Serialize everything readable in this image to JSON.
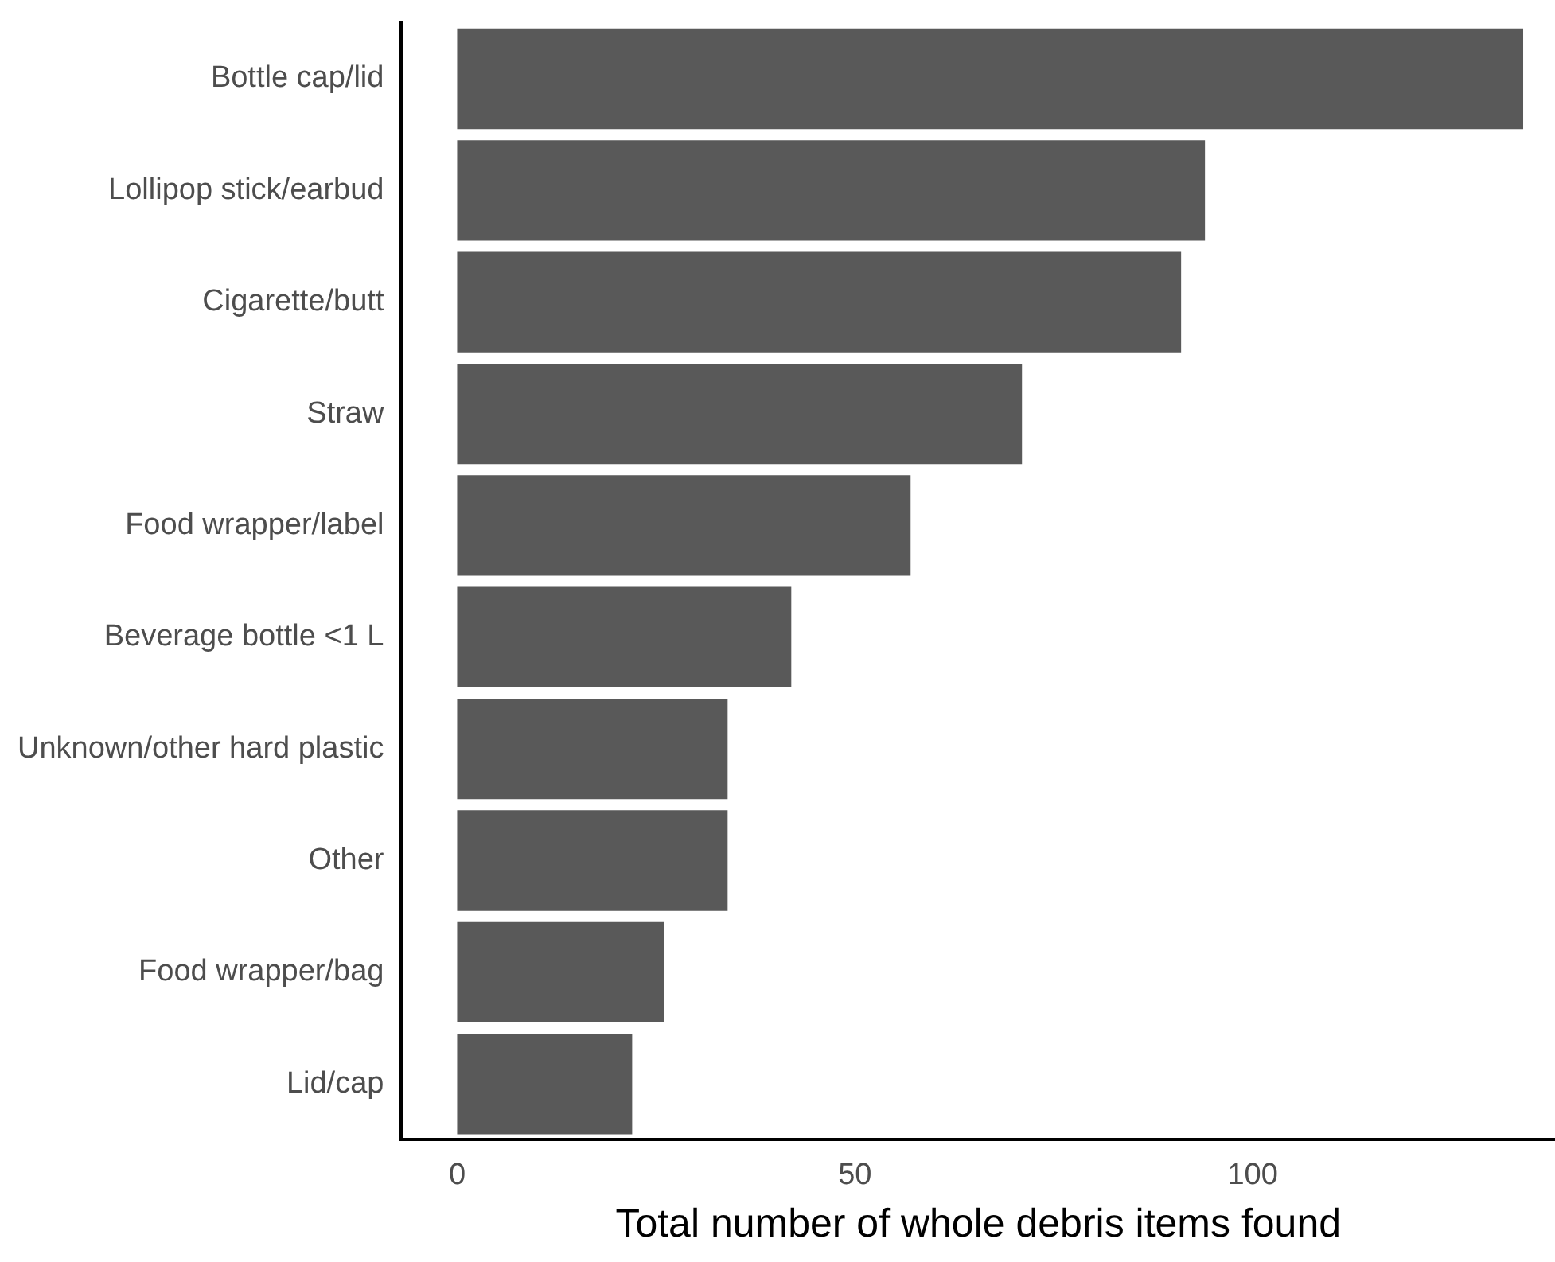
{
  "chart_data": {
    "type": "bar",
    "orientation": "horizontal",
    "xlabel": "Total number of whole debris items found",
    "categories": [
      "Bottle cap/lid",
      "Lollipop stick/earbud",
      "Cigarette/butt",
      "Straw",
      "Food wrapper/label",
      "Beverage bottle <1 L",
      "Unknown/other hard plastic",
      "Other",
      "Food wrapper/bag",
      "Lid/cap"
    ],
    "values": [
      134,
      94,
      91,
      71,
      57,
      42,
      34,
      34,
      26,
      22
    ],
    "color": "#595959",
    "xlim": [
      -7,
      138
    ],
    "xticks": [
      0,
      50,
      100
    ],
    "grid": false,
    "legend": false
  }
}
